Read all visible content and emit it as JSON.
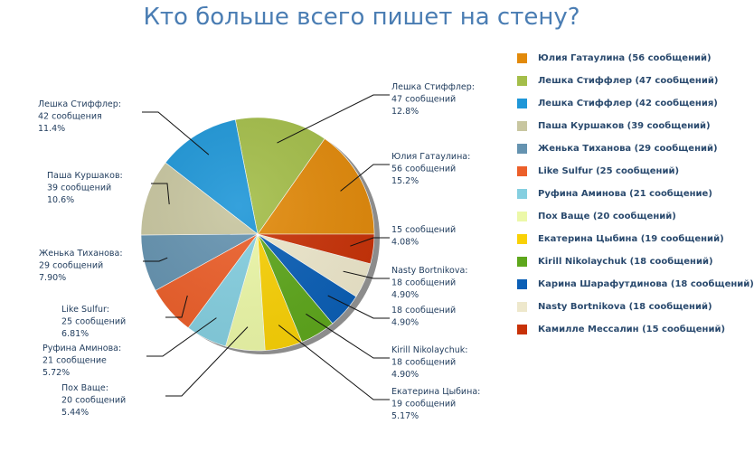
{
  "page": {
    "title": "Кто больше всего пишет на стену?"
  },
  "legend": [
    "Юлия Гатаулина (56 сообщений)",
    "Лешка Стиффлер (47 сообщений)",
    "Лешка Стиффлер (42 сообщения)",
    "Паша Куршаков (39 сообщений)",
    "Женька Тиханова (29 сообщений)",
    "Like Sulfur (25 сообщений)",
    "Руфина Аминова (21 сообщение)",
    "Пох Ваще (20 сообщений)",
    "Екатерина Цыбина (19 сообщений)",
    "Kirill Nikolaychuk (18 сообщений)",
    "Карина Шарафутдинова (18 сообщений)",
    "Nasty Bortnikova (18 сообщений)",
    "Камилле Мессалин (15 сообщений)"
  ],
  "chart_data": {
    "type": "pie",
    "title": "Кто больше всего пишет на стену?",
    "legend_position": "right",
    "slices": [
      {
        "value": 56,
        "color": "#e28a0b",
        "label": [
          "Юлия Гатаулина:",
          "56 сообщений",
          "15.2%"
        ]
      },
      {
        "value": 47,
        "color": "#a4be4a",
        "label": [
          "Лешка Стиффлер:",
          "47 сообщений",
          "12.8%"
        ]
      },
      {
        "value": 42,
        "color": "#1f97d8",
        "label": [
          "Лешка Стиффлер:",
          "42 сообщения",
          "11.4%"
        ]
      },
      {
        "value": 39,
        "color": "#c8c6a0",
        "label": [
          "Паша Куршаков:",
          "39 сообщений",
          "10.6%"
        ]
      },
      {
        "value": 29,
        "color": "#6593b0",
        "label": [
          "Женька Тиханова:",
          "29 сообщений",
          "7.90%"
        ]
      },
      {
        "value": 25,
        "color": "#ec5f2a",
        "label": [
          "Like Sulfur:",
          "25 сообщений",
          "6.81%"
        ]
      },
      {
        "value": 21,
        "color": "#85cfe0",
        "label": [
          "Руфина Аминова:",
          "21 сообщение",
          "5.72%"
        ]
      },
      {
        "value": 20,
        "color": "#ecf8a8",
        "label": [
          "Пох Ваще:",
          "20 сообщений",
          "5.44%"
        ]
      },
      {
        "value": 19,
        "color": "#f9d106",
        "label": [
          "Екатерина Цыбина:",
          "19 сообщений",
          "5.17%"
        ]
      },
      {
        "value": 18,
        "color": "#5ea71c",
        "label": [
          "Kirill Nikolaychuk:",
          "18 сообщений",
          "4.90%"
        ]
      },
      {
        "value": 18,
        "color": "#0b5fb6",
        "label": [
          "",
          "18 сообщений",
          "4.90%"
        ]
      },
      {
        "value": 18,
        "color": "#eee8cc",
        "label": [
          "Nasty Bortnikova:",
          "18 сообщений",
          "4.90%"
        ]
      },
      {
        "value": 15,
        "color": "#c83208",
        "label": [
          "",
          "15 сообщений",
          "4.08%"
        ]
      }
    ]
  }
}
